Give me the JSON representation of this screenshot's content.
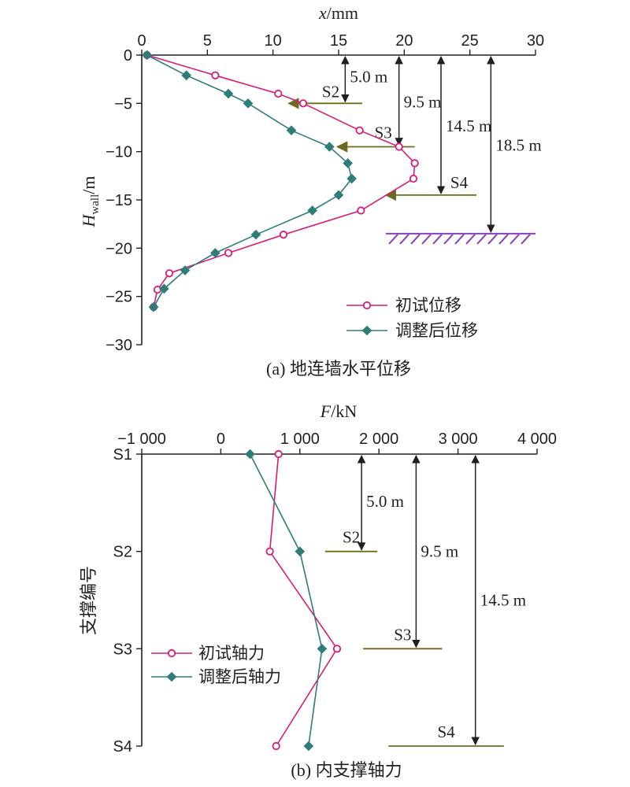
{
  "colors": {
    "initial": "#d81b78",
    "adjusted": "#2e7d78",
    "strut_line": "#6b6b1f",
    "ground": "#8a3fc0",
    "axis": "#231f20"
  },
  "chart_data": [
    {
      "type": "line",
      "caption": "(a) 地连墙水平位移",
      "xlabel_italic": "x",
      "xlabel_unit": "/mm",
      "ylabel_italic": "H",
      "ylabel_sub": "wall",
      "ylabel_unit": "/m",
      "x_axis_position": "top",
      "xlim": [
        0,
        30
      ],
      "ylim": [
        -30,
        0
      ],
      "x_ticks": [
        "0",
        "5",
        "10",
        "15",
        "20",
        "25",
        "30"
      ],
      "y_ticks": [
        "0",
        "−5",
        "−10",
        "−15",
        "−20",
        "−25",
        "−30"
      ],
      "legend_position": "bottom-right",
      "series": [
        {
          "name": "初试位移",
          "marker": "open-circle",
          "x": [
            0.4,
            5.6,
            10.4,
            12.3,
            16.6,
            19.6,
            20.8,
            20.7,
            16.7,
            10.8,
            6.6,
            2.1,
            1.2,
            0.9
          ],
          "y": [
            0,
            -2.1,
            -4.0,
            -5.0,
            -7.8,
            -9.5,
            -11.2,
            -12.8,
            -16.1,
            -18.6,
            -20.5,
            -22.6,
            -24.3,
            -26.1
          ]
        },
        {
          "name": "调整后位移",
          "marker": "filled-diamond",
          "x": [
            0.4,
            3.4,
            6.6,
            8.1,
            11.4,
            14.3,
            15.7,
            16.0,
            15.0,
            13.0,
            8.7,
            5.6,
            3.3,
            1.7,
            0.9
          ],
          "y": [
            0,
            -2.1,
            -4.0,
            -5.0,
            -7.8,
            -9.5,
            -11.2,
            -12.8,
            -14.5,
            -16.1,
            -18.6,
            -20.5,
            -22.3,
            -24.2,
            -26.1
          ]
        }
      ],
      "annotations": [
        {
          "text": "5.0 m",
          "x": 15.5,
          "y_from": 0,
          "y_to": -5.0
        },
        {
          "text": "9.5 m",
          "x": 19.6,
          "y_from": 0,
          "y_to": -9.5
        },
        {
          "text": "14.5 m",
          "x": 22.8,
          "y_from": 0,
          "y_to": -14.5
        },
        {
          "text": "18.5 m",
          "x": 26.6,
          "y_from": 0,
          "y_to": -18.5
        }
      ],
      "struts": [
        {
          "label": "S2",
          "depth": -5.0,
          "x_from": 11.2,
          "x_to": 16.8
        },
        {
          "label": "S3",
          "depth": -9.5,
          "x_from": 14.9,
          "x_to": 20.8
        },
        {
          "label": "S4",
          "depth": -14.5,
          "x_from": 18.6,
          "x_to": 25.5
        }
      ],
      "ground": {
        "depth": -18.5,
        "x_from": 18.6,
        "x_to": 30.0
      }
    },
    {
      "type": "line",
      "caption": "(b) 内支撑轴力",
      "xlabel_italic": "F",
      "xlabel_unit": "/kN",
      "ylabel": "支撑编号",
      "x_axis_position": "top",
      "xlim": [
        -1000,
        4000
      ],
      "x_ticks": [
        "−1 000",
        "0",
        "1 000",
        "2 000",
        "3 000",
        "4 000"
      ],
      "categories": [
        "S1",
        "S2",
        "S3",
        "S4"
      ],
      "legend_position": "bottom-left",
      "series": [
        {
          "name": "初试轴力",
          "marker": "open-circle",
          "values": [
            730,
            620,
            1470,
            700
          ]
        },
        {
          "name": "调整后轴力",
          "marker": "filled-diamond",
          "values": [
            370,
            1000,
            1280,
            1110
          ]
        }
      ],
      "annotations": [
        {
          "text": "5.0 m",
          "x": 1780,
          "from": "S1",
          "to": "S2"
        },
        {
          "text": "9.5 m",
          "x": 2470,
          "from": "S1",
          "to": "S3"
        },
        {
          "text": "14.5 m",
          "x": 3220,
          "from": "S1",
          "to": "S4"
        }
      ],
      "struts": [
        {
          "label": "S2",
          "at": "S2",
          "x_from": 1320,
          "x_to": 1980
        },
        {
          "label": "S3",
          "at": "S3",
          "x_from": 1800,
          "x_to": 2800
        },
        {
          "label": "S4",
          "at": "S4",
          "x_from": 2120,
          "x_to": 3580
        }
      ]
    }
  ]
}
